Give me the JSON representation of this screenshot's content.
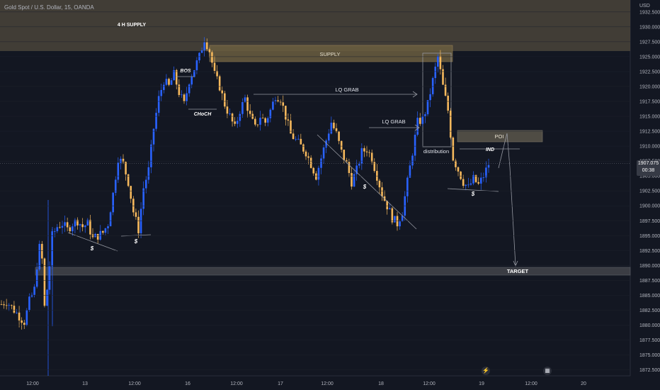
{
  "header": {
    "symbol": "Gold Spot / U.S. Dollar, 15, OANDA",
    "currency": "USD"
  },
  "last_price": {
    "value": "1907.075",
    "countdown": "00:38"
  },
  "icons": {
    "bolt": "lightning-icon",
    "calendar": "calendar-icon"
  },
  "colors": {
    "up": "#2962ff",
    "down": "#f5b85c",
    "zone": "#5d5541",
    "bg": "#131722",
    "annotation": "#b2b5be"
  },
  "chart_data": {
    "type": "candlestick",
    "y_axis_labels": [
      "1932.500",
      "1930.000",
      "1927.500",
      "1925.000",
      "1922.500",
      "1920.000",
      "1917.500",
      "1915.000",
      "1912.500",
      "1910.000",
      "1907.500",
      "1905.000",
      "1902.500",
      "1900.000",
      "1897.500",
      "1895.000",
      "1892.500",
      "1890.000",
      "1887.500",
      "1885.000",
      "1882.500",
      "1880.000",
      "1877.500",
      "1875.000",
      "1872.500"
    ],
    "ylim": [
      1871.5,
      1934.5
    ],
    "x_axis_labels": [
      "12:00",
      "13",
      "12:00",
      "16",
      "12:00",
      "17",
      "12:00",
      "18",
      "12:00",
      "19",
      "12:00",
      "20"
    ],
    "close_path": [
      [
        0,
        1883.5
      ],
      [
        2,
        1884
      ],
      [
        4,
        1883
      ],
      [
        6,
        1882
      ],
      [
        8,
        1881
      ],
      [
        9,
        1880.5
      ],
      [
        11,
        1884
      ],
      [
        13,
        1886
      ],
      [
        14,
        1890
      ],
      [
        15,
        1893
      ],
      [
        16,
        1891
      ],
      [
        17,
        1883
      ],
      [
        18,
        1886
      ],
      [
        19,
        1890
      ],
      [
        20,
        1895
      ],
      [
        22,
        1896.5
      ],
      [
        24,
        1897
      ],
      [
        26,
        1896
      ],
      [
        28,
        1897
      ],
      [
        30,
        1897.5
      ],
      [
        32,
        1896.5
      ],
      [
        34,
        1897
      ],
      [
        36,
        1894.5
      ],
      [
        38,
        1895
      ],
      [
        40,
        1895.5
      ],
      [
        42,
        1897
      ],
      [
        44,
        1902
      ],
      [
        46,
        1908
      ],
      [
        48,
        1907
      ],
      [
        50,
        1904
      ],
      [
        52,
        1899
      ],
      [
        54,
        1896
      ],
      [
        56,
        1903
      ],
      [
        58,
        1906
      ],
      [
        60,
        1913
      ],
      [
        62,
        1918
      ],
      [
        64,
        1921
      ],
      [
        66,
        1920
      ],
      [
        68,
        1922
      ],
      [
        70,
        1919
      ],
      [
        72,
        1917
      ],
      [
        74,
        1921
      ],
      [
        76,
        1923
      ],
      [
        78,
        1925
      ],
      [
        80,
        1928
      ],
      [
        82,
        1926
      ],
      [
        84,
        1922
      ],
      [
        86,
        1920
      ],
      [
        88,
        1917
      ],
      [
        90,
        1915
      ],
      [
        92,
        1913
      ],
      [
        94,
        1916
      ],
      [
        96,
        1918
      ],
      [
        98,
        1915
      ],
      [
        100,
        1913
      ],
      [
        102,
        1915
      ],
      [
        104,
        1914
      ],
      [
        106,
        1916
      ],
      [
        108,
        1918.5
      ],
      [
        110,
        1918
      ],
      [
        112,
        1915
      ],
      [
        114,
        1912
      ],
      [
        116,
        1911
      ],
      [
        118,
        1910
      ],
      [
        120,
        1909
      ],
      [
        122,
        1907
      ],
      [
        124,
        1905
      ],
      [
        126,
        1908
      ],
      [
        128,
        1911
      ],
      [
        130,
        1914
      ],
      [
        132,
        1912
      ],
      [
        134,
        1909
      ],
      [
        136,
        1907
      ],
      [
        138,
        1904
      ],
      [
        140,
        1906
      ],
      [
        142,
        1909
      ],
      [
        144,
        1909.5
      ],
      [
        146,
        1908
      ],
      [
        148,
        1905
      ],
      [
        150,
        1902
      ],
      [
        152,
        1900
      ],
      [
        154,
        1898
      ],
      [
        156,
        1897
      ],
      [
        158,
        1899
      ],
      [
        160,
        1904
      ],
      [
        162,
        1909
      ],
      [
        164,
        1914
      ],
      [
        166,
        1914.5
      ],
      [
        168,
        1917
      ],
      [
        170,
        1921
      ],
      [
        172,
        1925
      ],
      [
        174,
        1920
      ],
      [
        176,
        1916
      ],
      [
        178,
        1908
      ],
      [
        180,
        1906
      ],
      [
        182,
        1904
      ],
      [
        184,
        1903
      ],
      [
        186,
        1904.5
      ],
      [
        188,
        1903.5
      ],
      [
        190,
        1905
      ],
      [
        192,
        1907
      ]
    ],
    "annotations": [
      "4 H SUPPLY",
      "SUPPLY",
      "BOS",
      "CHoCH",
      "LQ GRAB",
      "LQ GRAB",
      "distribution",
      "POI",
      "IND",
      "TARGET",
      "$",
      "$",
      "$",
      "$"
    ]
  }
}
